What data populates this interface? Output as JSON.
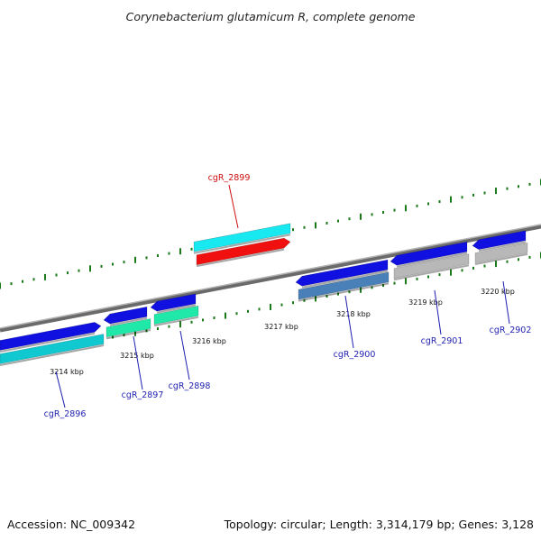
{
  "title": "Corynebacterium glutamicum R, complete genome",
  "footer": {
    "accession": "Accession: NC_009342",
    "summary": "Topology: circular; Length: 3,314,179 bp; Genes: 3,128"
  },
  "colors": {
    "backbone": "#8a8a8a",
    "tick": "#1a7a1a",
    "label_default": "#1f1fb0",
    "label_highlight": "#d01010",
    "blue": "#1010e0",
    "cyan": "#10c8d0",
    "aqua": "#18e8f0",
    "green": "#20e8a8",
    "red": "#f01010",
    "steel": "#4a80b8",
    "gray": "#b8b8b8"
  },
  "ticks": [
    {
      "label": "3214 kbp"
    },
    {
      "label": "3215 kbp"
    },
    {
      "label": "3216 kbp"
    },
    {
      "label": "3217 kbp"
    },
    {
      "label": "3218 kbp"
    },
    {
      "label": "3219 kbp"
    },
    {
      "label": "3220 kbp"
    }
  ],
  "genes": [
    {
      "label": "cgR_2896",
      "highlight": false
    },
    {
      "label": "cgR_2897",
      "highlight": false
    },
    {
      "label": "cgR_2898",
      "highlight": false
    },
    {
      "label": "cgR_2899",
      "highlight": true
    },
    {
      "label": "cgR_2900",
      "highlight": false
    },
    {
      "label": "cgR_2901",
      "highlight": false
    },
    {
      "label": "cgR_2902",
      "highlight": false
    }
  ]
}
